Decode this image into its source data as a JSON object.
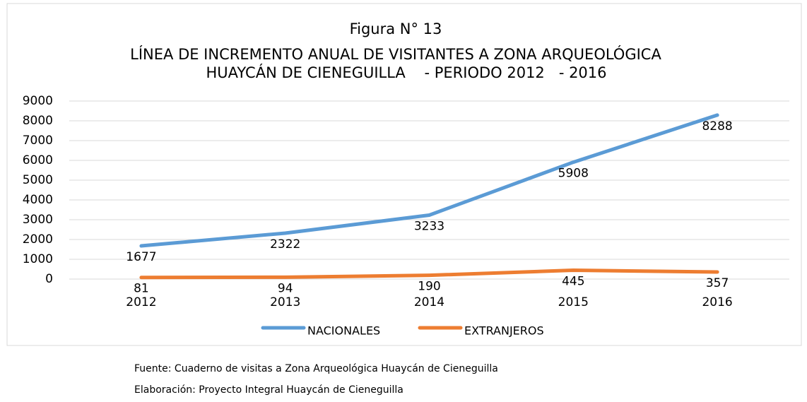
{
  "chart_data": {
    "type": "line",
    "title": "Figura N° 13",
    "subtitle": [
      "LÍNEA DE INCREMENTO ANUAL DE VISITANTES A ZONA ARQUEOLÓGICA",
      "HUAYCÁN DE CIENEGUILLA    - PERIODO 2012   - 2016"
    ],
    "categories": [
      "2012",
      "2013",
      "2014",
      "2015",
      "2016"
    ],
    "series": [
      {
        "name": "NACIONALES",
        "color": "#5b9bd5",
        "values": [
          1677,
          2322,
          3233,
          5908,
          8288
        ]
      },
      {
        "name": "EXTRANJEROS",
        "color": "#ed7d31",
        "values": [
          81,
          94,
          190,
          445,
          357
        ]
      }
    ],
    "ylim": [
      0,
      9000
    ],
    "yticks": [
      0,
      1000,
      2000,
      3000,
      4000,
      5000,
      6000,
      7000,
      8000,
      9000
    ],
    "grid": true,
    "legend": "bottom"
  },
  "notes": {
    "source": "Fuente: Cuaderno de visitas a Zona Arqueológica Huaycán de Cieneguilla",
    "credit": "Elaboración: Proyecto Integral Huaycán de Cieneguilla"
  }
}
